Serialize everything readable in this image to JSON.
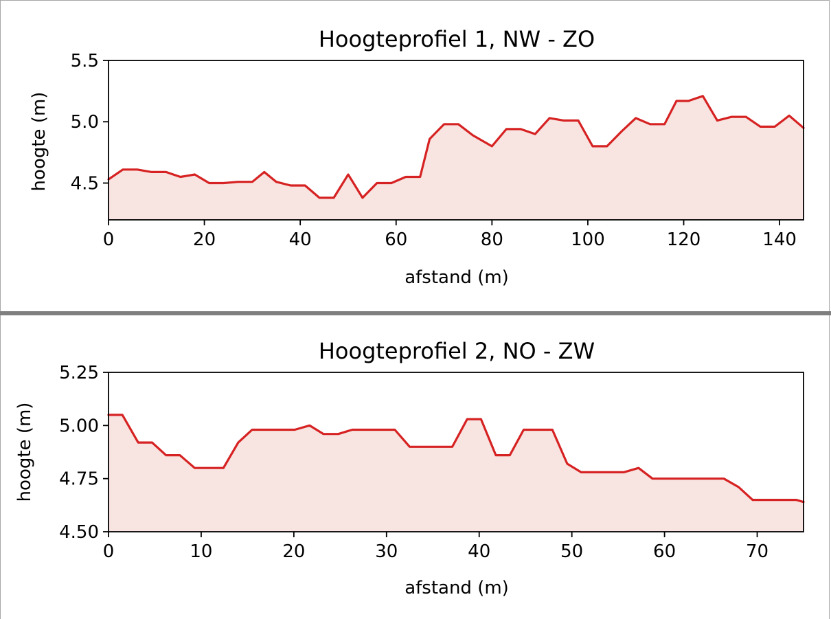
{
  "colors": {
    "line": "#d62222",
    "fill": "#f8e4e0",
    "axes": "#000000"
  },
  "chart_data": [
    {
      "type": "area",
      "title": "Hoogteprofiel 1, NW - ZO",
      "xlabel": "afstand (m)",
      "ylabel": "hoogte (m)",
      "xlim": [
        0,
        145
      ],
      "ylim": [
        4.2,
        5.5
      ],
      "xticks": [
        0,
        20,
        40,
        60,
        80,
        100,
        120,
        140
      ],
      "xtick_labels": [
        "0",
        "20",
        "40",
        "60",
        "80",
        "100",
        "120",
        "140"
      ],
      "yticks": [
        4.5,
        5.0,
        5.5
      ],
      "ytick_labels": [
        "4.5",
        "5.0",
        "5.5"
      ],
      "grid": false,
      "x": [
        0,
        3,
        6,
        9,
        12,
        15,
        18,
        21,
        24,
        27,
        30,
        32.5,
        35,
        38,
        41,
        44,
        47,
        50,
        53,
        56,
        59,
        62,
        65,
        67,
        70,
        73,
        76,
        80,
        83,
        86,
        89,
        92,
        95,
        98,
        101,
        104,
        107,
        110,
        113,
        116,
        118.5,
        121,
        124,
        127,
        130,
        133,
        136,
        139,
        142,
        145
      ],
      "y": [
        4.53,
        4.61,
        4.61,
        4.59,
        4.59,
        4.55,
        4.57,
        4.5,
        4.5,
        4.51,
        4.51,
        4.59,
        4.51,
        4.48,
        4.48,
        4.38,
        4.38,
        4.57,
        4.38,
        4.5,
        4.5,
        4.55,
        4.55,
        4.86,
        4.98,
        4.98,
        4.89,
        4.8,
        4.94,
        4.94,
        4.9,
        5.03,
        5.01,
        5.01,
        4.8,
        4.8,
        4.92,
        5.03,
        4.98,
        4.98,
        5.17,
        5.17,
        5.21,
        5.01,
        5.04,
        5.04,
        4.96,
        4.96,
        5.05,
        4.95
      ]
    },
    {
      "type": "area",
      "title": "Hoogteprofiel 2, NO - ZW",
      "xlabel": "afstand (m)",
      "ylabel": "hoogte (m)",
      "xlim": [
        0,
        75
      ],
      "ylim": [
        4.5,
        5.25
      ],
      "xticks": [
        0,
        10,
        20,
        30,
        40,
        50,
        60,
        70
      ],
      "xtick_labels": [
        "0",
        "10",
        "20",
        "30",
        "40",
        "50",
        "60",
        "70"
      ],
      "yticks": [
        4.5,
        4.75,
        5.0,
        5.25
      ],
      "ytick_labels": [
        "4.50",
        "4.75",
        "5.00",
        "5.25"
      ],
      "grid": false,
      "x": [
        0,
        1.5,
        3.2,
        4.7,
        6.2,
        7.7,
        9.3,
        10.8,
        12.4,
        14,
        15.5,
        17,
        18.6,
        20.1,
        21.7,
        23.2,
        24.8,
        26.3,
        27.8,
        29.4,
        30.9,
        32.5,
        34,
        35.6,
        37.1,
        38.7,
        40.2,
        41.8,
        43.3,
        44.8,
        46.4,
        47.9,
        49.5,
        51,
        52.6,
        54.1,
        55.6,
        57.2,
        58.7,
        60.3,
        61.8,
        63.4,
        64.9,
        66.4,
        68,
        69.5,
        71.1,
        72.6,
        74.2,
        75
      ],
      "y": [
        5.05,
        5.05,
        4.92,
        4.92,
        4.86,
        4.86,
        4.8,
        4.8,
        4.8,
        4.92,
        4.98,
        4.98,
        4.98,
        4.98,
        5.0,
        4.96,
        4.96,
        4.98,
        4.98,
        4.98,
        4.98,
        4.9,
        4.9,
        4.9,
        4.9,
        5.03,
        5.03,
        4.86,
        4.86,
        4.98,
        4.98,
        4.98,
        4.82,
        4.78,
        4.78,
        4.78,
        4.78,
        4.8,
        4.75,
        4.75,
        4.75,
        4.75,
        4.75,
        4.75,
        4.71,
        4.65,
        4.65,
        4.65,
        4.65,
        4.64
      ]
    }
  ]
}
